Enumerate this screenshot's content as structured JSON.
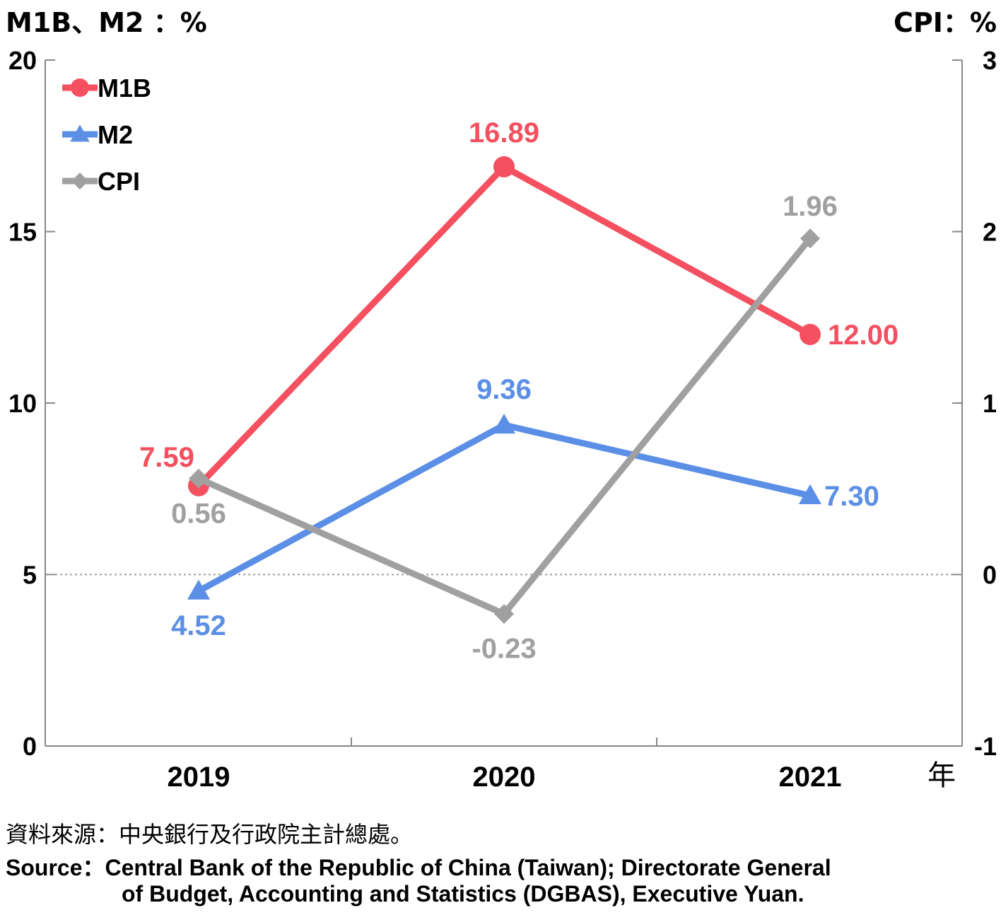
{
  "chart_data": {
    "type": "line",
    "categories": [
      "2019",
      "2020",
      "2021"
    ],
    "x_unit_label": "年",
    "left_axis": {
      "label": "M1B、M2 ：%",
      "ylim": [
        0,
        20
      ],
      "ticks": [
        "0",
        "5",
        "10",
        "15",
        "20"
      ]
    },
    "right_axis": {
      "label": "CPI：%",
      "ylim": [
        -1,
        3
      ],
      "ticks": [
        "-1",
        "0",
        "1",
        "2",
        "3"
      ]
    },
    "series": [
      {
        "name": "M1B",
        "axis": "left",
        "color": "#f4505f",
        "marker": "circle",
        "values": [
          7.59,
          16.89,
          12.0
        ],
        "labels": [
          "7.59",
          "16.89",
          "12.00"
        ]
      },
      {
        "name": "M2",
        "axis": "left",
        "color": "#5b8fe6",
        "marker": "triangle",
        "values": [
          4.52,
          9.36,
          7.3
        ],
        "labels": [
          "4.52",
          "9.36",
          "7.30"
        ]
      },
      {
        "name": "CPI",
        "axis": "right",
        "color": "#a0a0a0",
        "marker": "diamond",
        "values": [
          0.56,
          -0.23,
          1.96
        ],
        "labels": [
          "0.56",
          "-0.23",
          "1.96"
        ]
      }
    ],
    "reference_line": {
      "axis": "right",
      "value": 0,
      "style": "dotted"
    },
    "legend": {
      "placement": "top-left"
    },
    "grid": false
  },
  "source": {
    "zh": "資料來源：中央銀行及行政院主計總處。",
    "en_line1": "Source：Central Bank of the Republic of China (Taiwan); Directorate General",
    "en_line2": "of Budget, Accounting and Statistics (DGBAS), Executive Yuan."
  }
}
